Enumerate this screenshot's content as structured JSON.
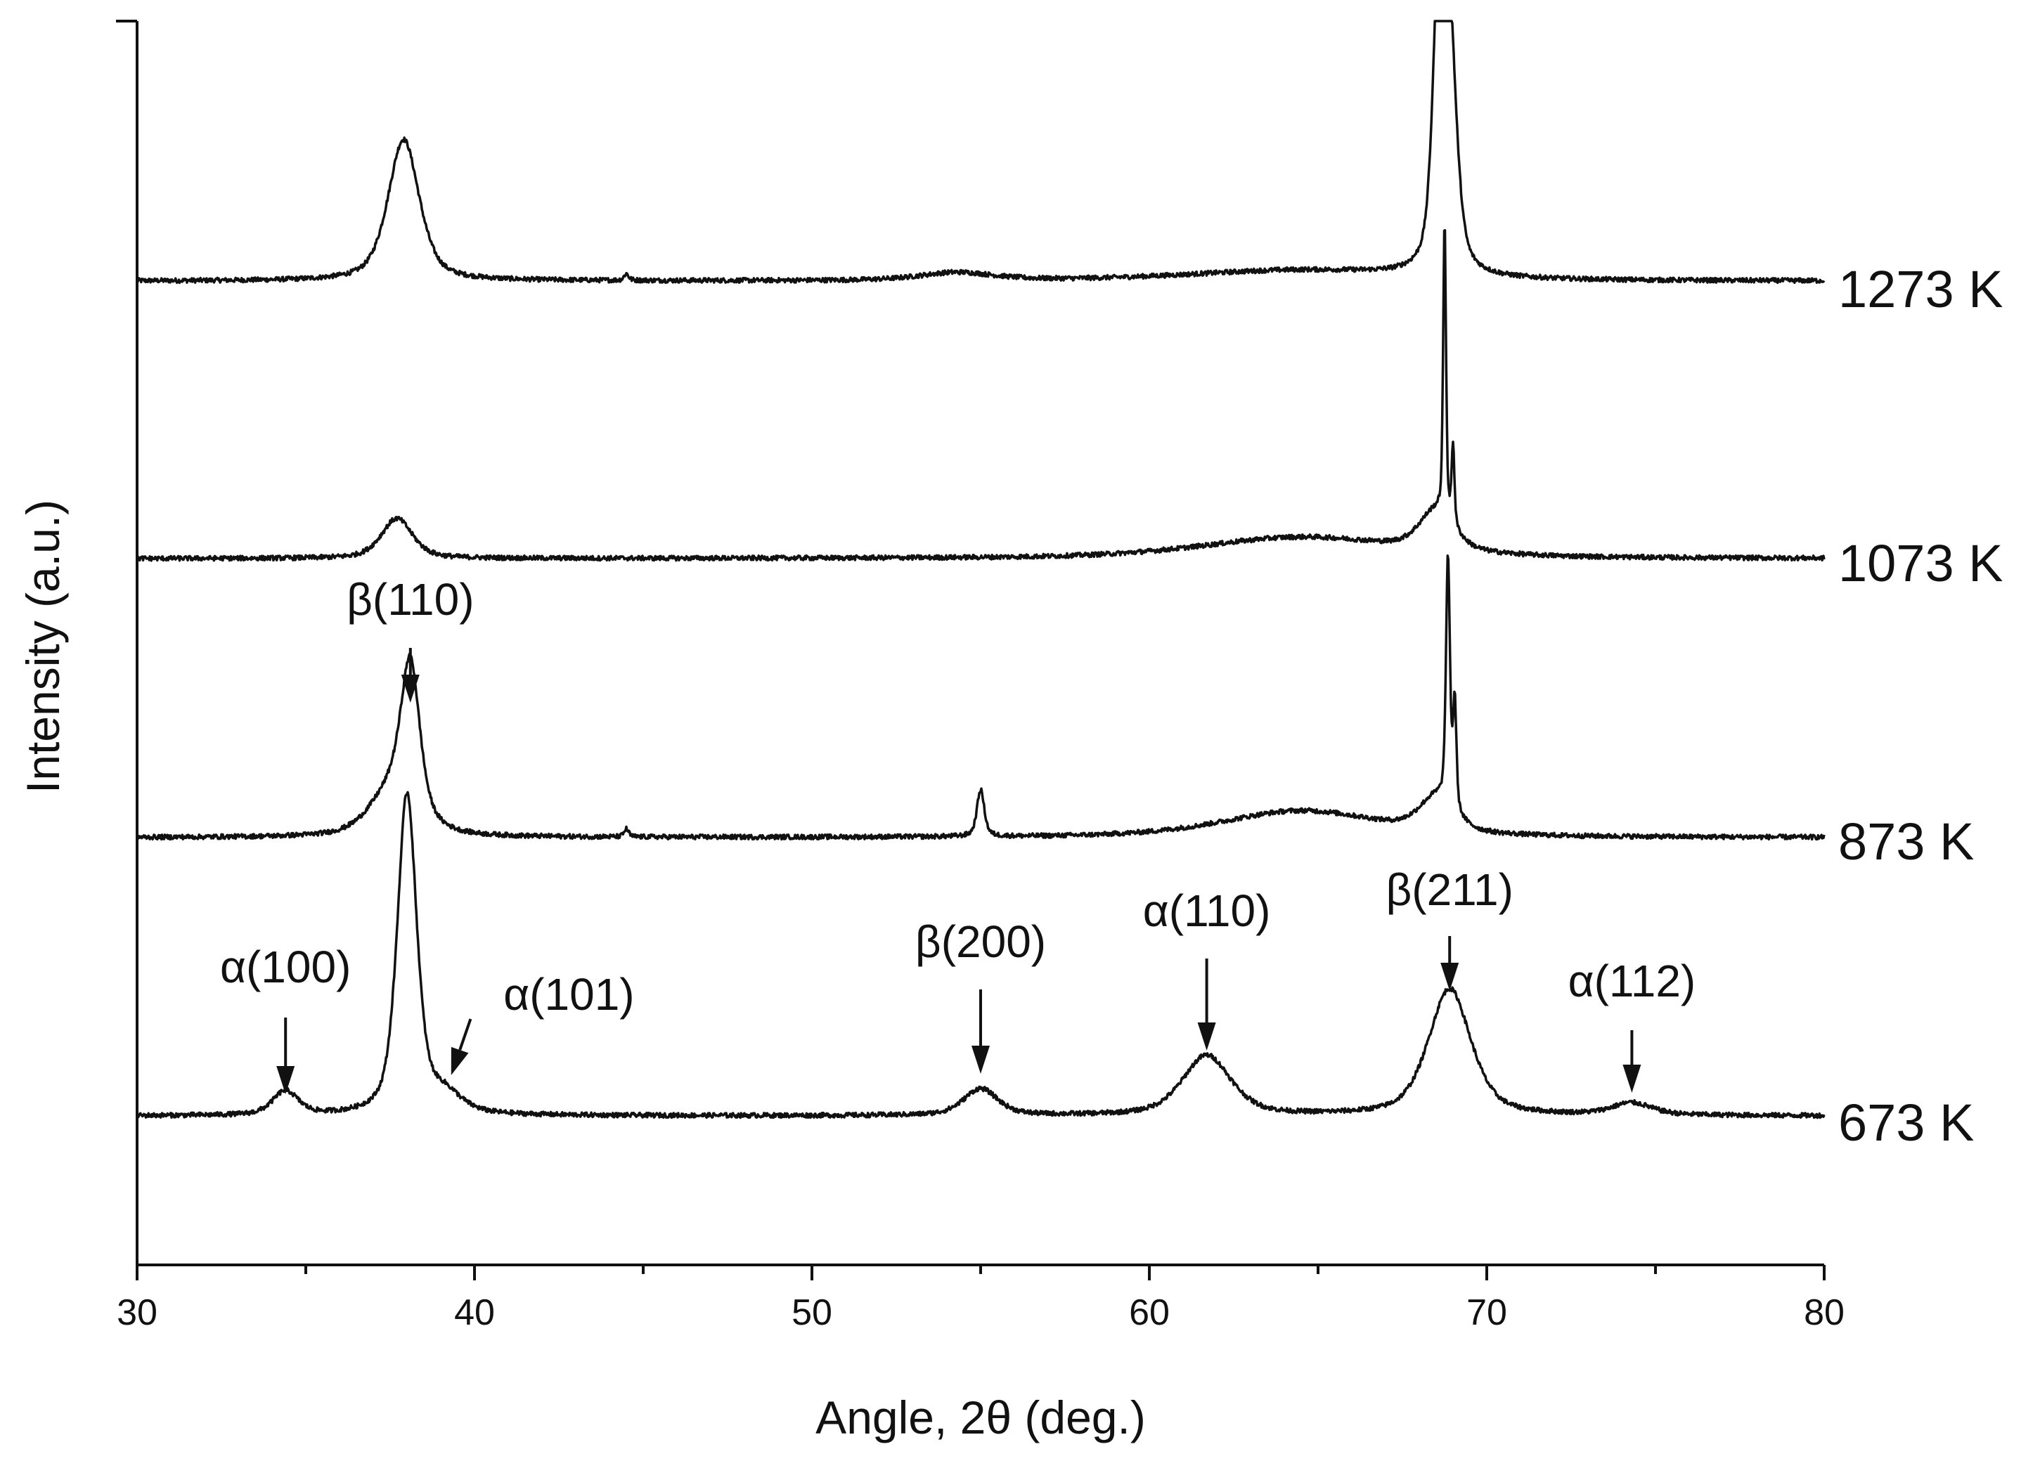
{
  "chart_data": {
    "type": "line",
    "xlabel": "Angle, 2θ (deg.)",
    "ylabel": "Intensity (a.u.)",
    "xlim": [
      30,
      80
    ],
    "xticks": [
      30,
      40,
      50,
      60,
      70,
      80
    ],
    "x_minor_step": 5,
    "y_ticks_shown": false,
    "grid": false,
    "legend": "none",
    "series": [
      {
        "name": "1273 K",
        "baseline": 2.0,
        "peaks": [
          {
            "x": 37.9,
            "height": 1.06,
            "width": 0.55
          },
          {
            "x": 44.5,
            "height": 0.05,
            "width": 0.08
          },
          {
            "x": 54.3,
            "height": 0.06,
            "width": 1.3
          },
          {
            "x": 64.5,
            "height": 0.08,
            "width": 4.0
          },
          {
            "x": 68.6,
            "height": 2.2,
            "width": 0.22
          },
          {
            "x": 68.9,
            "height": 1.6,
            "width": 0.25
          }
        ]
      },
      {
        "name": "1073 K",
        "baseline": 0.0,
        "peaks": [
          {
            "x": 37.7,
            "height": 0.3,
            "width": 0.55
          },
          {
            "x": 64.5,
            "height": 0.16,
            "width": 3.5
          },
          {
            "x": 68.5,
            "height": 0.3,
            "width": 0.6
          },
          {
            "x": 68.75,
            "height": 2.2,
            "width": 0.05
          },
          {
            "x": 69.0,
            "height": 0.6,
            "width": 0.05
          }
        ]
      },
      {
        "name": "873 K",
        "baseline": 0.0,
        "peaks": [
          {
            "x": 38.1,
            "height": 1.1,
            "width": 0.33
          },
          {
            "x": 37.6,
            "height": 0.35,
            "width": 0.8
          },
          {
            "x": 44.5,
            "height": 0.06,
            "width": 0.08
          },
          {
            "x": 55.0,
            "height": 0.35,
            "width": 0.13
          },
          {
            "x": 64.5,
            "height": 0.2,
            "width": 2.8
          },
          {
            "x": 68.5,
            "height": 0.25,
            "width": 0.6
          },
          {
            "x": 68.85,
            "height": 1.85,
            "width": 0.07
          },
          {
            "x": 69.05,
            "height": 0.8,
            "width": 0.06
          }
        ]
      },
      {
        "name": "673 K",
        "baseline": 0.0,
        "peaks": [
          {
            "x": 34.4,
            "height": 0.18,
            "width": 0.45
          },
          {
            "x": 38.0,
            "height": 2.4,
            "width": 0.34
          },
          {
            "x": 39.1,
            "height": 0.14,
            "width": 0.6
          },
          {
            "x": 55.0,
            "height": 0.2,
            "width": 0.6
          },
          {
            "x": 61.7,
            "height": 0.45,
            "width": 0.85
          },
          {
            "x": 68.9,
            "height": 0.95,
            "width": 0.75
          },
          {
            "x": 74.3,
            "height": 0.09,
            "width": 0.7
          }
        ]
      }
    ],
    "annotations": [
      {
        "text": "α(100)",
        "x": 34.4,
        "series": "673 K"
      },
      {
        "text": "α(101)",
        "x": 39.1,
        "series": "673 K"
      },
      {
        "text": "β(200)",
        "x": 55.0,
        "series": "673 K"
      },
      {
        "text": "α(110)",
        "x": 61.7,
        "series": "673 K"
      },
      {
        "text": "β(211)",
        "x": 68.9,
        "series": "673 K"
      },
      {
        "text": "α(112)",
        "x": 74.3,
        "series": "673 K"
      },
      {
        "text": "β(110)",
        "x": 38.1,
        "series": "873 K"
      }
    ]
  }
}
